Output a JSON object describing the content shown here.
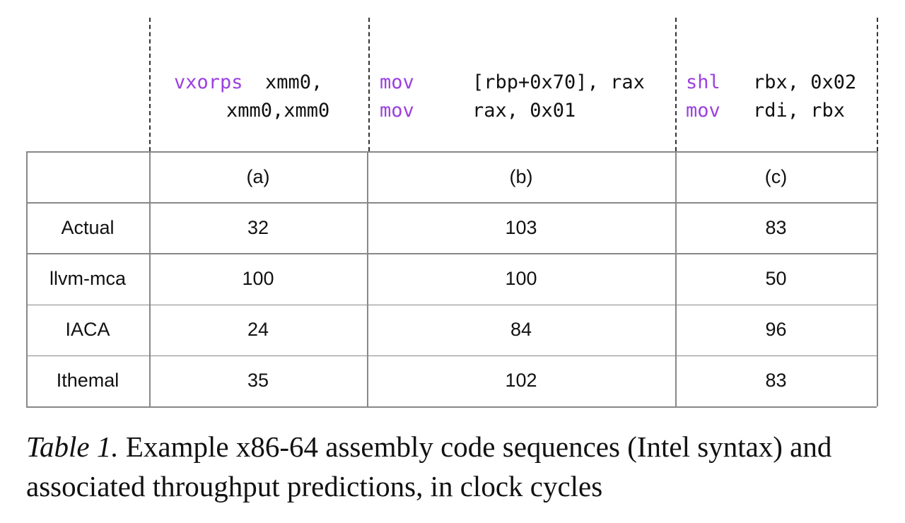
{
  "code": [
    {
      "lines": [
        {
          "op": "vxorps",
          "args": "xmm0,"
        },
        {
          "args": "xmm0,xmm0"
        }
      ]
    },
    {
      "lines": [
        {
          "op": "mov",
          "args": "[rbp+0x70], rax"
        },
        {
          "op": "mov",
          "args": "rax, 0x01"
        }
      ]
    },
    {
      "lines": [
        {
          "op": "shl",
          "args": "rbx, 0x02"
        },
        {
          "op": "mov",
          "args": "rdi, rbx"
        }
      ]
    }
  ],
  "table": {
    "columns": [
      "(a)",
      "(b)",
      "(c)"
    ],
    "rows": [
      {
        "label": "Actual",
        "values": [
          32,
          103,
          83
        ]
      },
      {
        "label": "llvm-mca",
        "values": [
          100,
          100,
          50
        ]
      },
      {
        "label": "IACA",
        "values": [
          24,
          84,
          96
        ]
      },
      {
        "label": "Ithemal",
        "values": [
          35,
          102,
          83
        ]
      }
    ]
  },
  "caption": {
    "label": "Table 1.",
    "text": "Example x86-64 assembly code sequences (Intel syntax) and associated throughput predictions, in clock cycles"
  }
}
